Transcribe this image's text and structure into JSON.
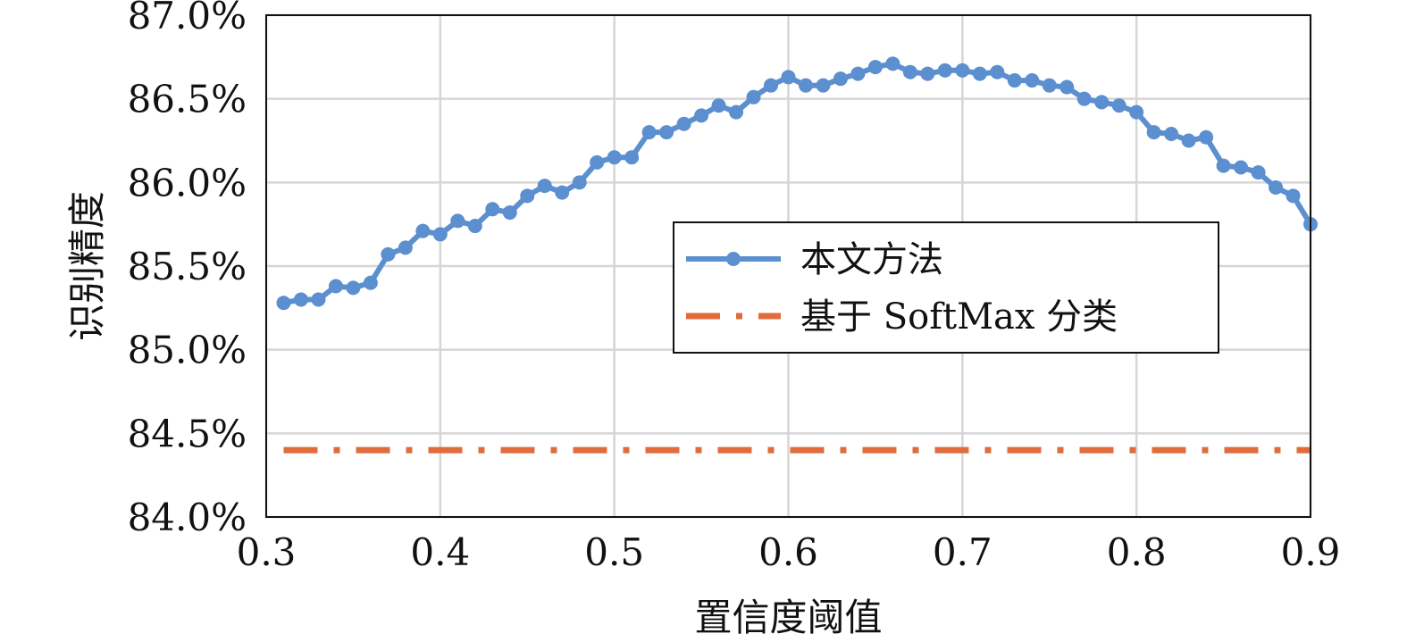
{
  "chart_data": {
    "type": "line",
    "xlabel": "置信度阈值",
    "ylabel": "识别精度",
    "xlim": [
      0.3,
      0.9
    ],
    "ylim": [
      84.0,
      87.0
    ],
    "x_ticks": [
      "0.3",
      "0.4",
      "0.5",
      "0.6",
      "0.7",
      "0.8",
      "0.9"
    ],
    "x_tick_values": [
      0.3,
      0.4,
      0.5,
      0.6,
      0.7,
      0.8,
      0.9
    ],
    "y_ticks": [
      "84.0%",
      "84.5%",
      "85.0%",
      "85.5%",
      "86.0%",
      "86.5%",
      "87.0%"
    ],
    "y_tick_values": [
      84.0,
      84.5,
      85.0,
      85.5,
      86.0,
      86.5,
      87.0
    ],
    "grid": true,
    "legend_position": "center-right",
    "series": [
      {
        "name": "本文方法",
        "color": "#5b8fcf",
        "style": "solid-markers",
        "x": [
          0.31,
          0.32,
          0.33,
          0.34,
          0.35,
          0.36,
          0.37,
          0.38,
          0.39,
          0.4,
          0.41,
          0.42,
          0.43,
          0.44,
          0.45,
          0.46,
          0.47,
          0.48,
          0.49,
          0.5,
          0.51,
          0.52,
          0.53,
          0.54,
          0.55,
          0.56,
          0.57,
          0.58,
          0.59,
          0.6,
          0.61,
          0.62,
          0.63,
          0.64,
          0.65,
          0.66,
          0.67,
          0.68,
          0.69,
          0.7,
          0.71,
          0.72,
          0.73,
          0.74,
          0.75,
          0.76,
          0.77,
          0.78,
          0.79,
          0.8,
          0.81,
          0.82,
          0.83,
          0.84,
          0.85,
          0.86,
          0.87,
          0.88,
          0.89,
          0.9
        ],
        "y": [
          85.28,
          85.3,
          85.3,
          85.38,
          85.37,
          85.4,
          85.57,
          85.61,
          85.71,
          85.69,
          85.77,
          85.74,
          85.84,
          85.82,
          85.92,
          85.98,
          85.94,
          86.0,
          86.12,
          86.15,
          86.15,
          86.3,
          86.3,
          86.35,
          86.4,
          86.46,
          86.42,
          86.51,
          86.58,
          86.63,
          86.58,
          86.58,
          86.62,
          86.65,
          86.69,
          86.71,
          86.66,
          86.65,
          86.67,
          86.67,
          86.65,
          86.66,
          86.61,
          86.61,
          86.58,
          86.57,
          86.5,
          86.48,
          86.46,
          86.42,
          86.3,
          86.29,
          86.25,
          86.27,
          86.1,
          86.09,
          86.06,
          85.97,
          85.92,
          85.75
        ]
      },
      {
        "name": "基于 SoftMax 分类",
        "color": "#e06c3c",
        "style": "dash-dot",
        "x": [
          0.31,
          0.9
        ],
        "y": [
          84.4,
          84.4
        ]
      }
    ]
  }
}
